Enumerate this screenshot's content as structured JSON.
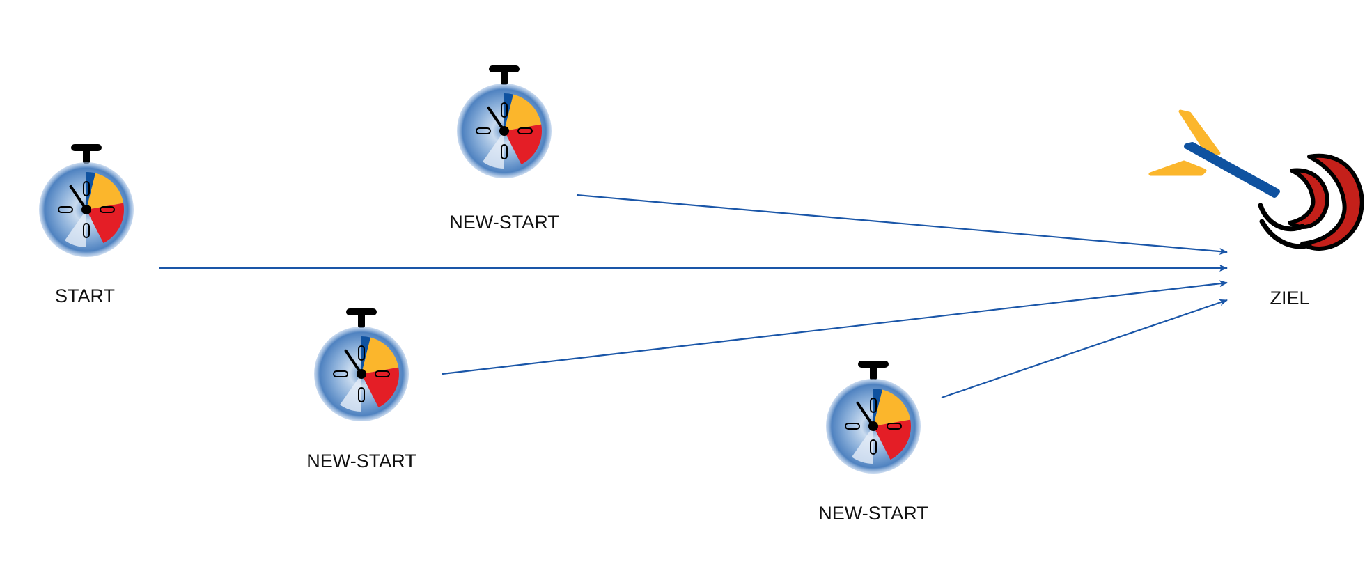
{
  "nodes": [
    {
      "id": "start",
      "label": "START",
      "icon": "stopwatch-icon"
    },
    {
      "id": "new-start-1",
      "label": "NEW-START",
      "icon": "stopwatch-icon"
    },
    {
      "id": "new-start-2",
      "label": "NEW-START",
      "icon": "stopwatch-icon"
    },
    {
      "id": "new-start-3",
      "label": "NEW-START",
      "icon": "stopwatch-icon"
    },
    {
      "id": "ziel",
      "label": "ZIEL",
      "icon": "dart-target-icon"
    }
  ],
  "edges": [
    {
      "from": "start",
      "to": "ziel"
    },
    {
      "from": "new-start-1",
      "to": "ziel"
    },
    {
      "from": "new-start-2",
      "to": "ziel"
    },
    {
      "from": "new-start-3",
      "to": "ziel"
    }
  ],
  "colors": {
    "arrow": "#1a56a8",
    "clock_blue": "#6d9bd0",
    "wedge_blue": "#0f52a0",
    "wedge_yellow": "#fbb62c",
    "wedge_red": "#e41e26",
    "target_red": "#c4201a",
    "dart_blue": "#0f52a0",
    "dart_yellow": "#fbb62c"
  }
}
